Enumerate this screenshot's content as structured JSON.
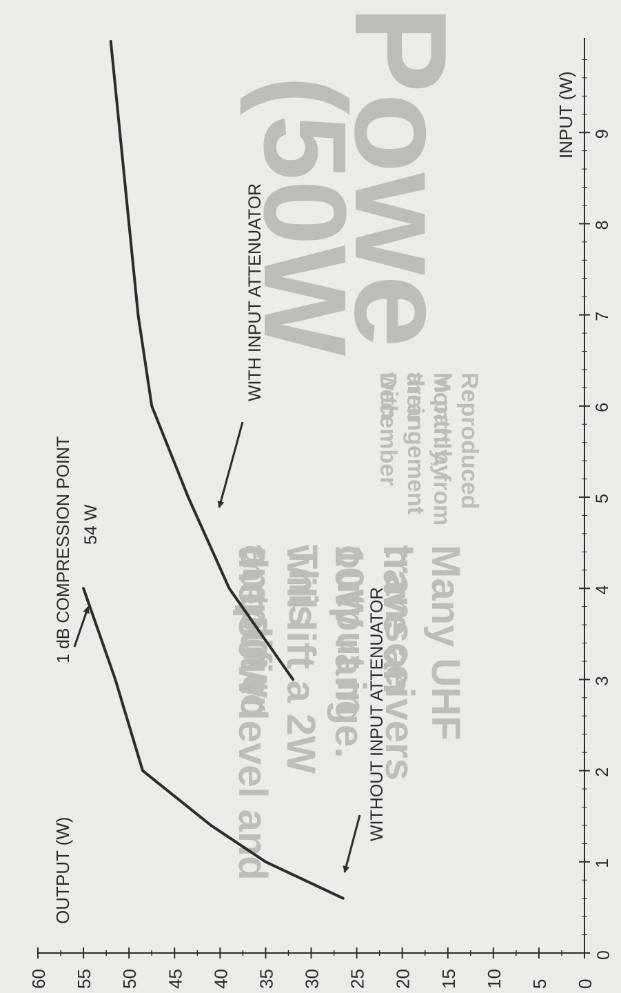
{
  "chart_data": {
    "type": "line",
    "orientation": "rotated-90-clockwise",
    "xlabel": "INPUT (W)",
    "ylabel": "OUTPUT (W)",
    "xlim": [
      0,
      10
    ],
    "ylim": [
      0,
      60
    ],
    "x_ticks": [
      "0",
      "1",
      "2",
      "3",
      "4",
      "5",
      "6",
      "7",
      "8",
      "9"
    ],
    "y_ticks": [
      "0",
      "5",
      "10",
      "15",
      "20",
      "25",
      "30",
      "35",
      "40",
      "45",
      "50",
      "55",
      "60"
    ],
    "series": [
      {
        "name": "WITHOUT INPUT ATTENUATOR",
        "x": [
          0.6,
          1.0,
          1.4,
          2.0,
          3.0,
          4.0
        ],
        "y": [
          26.5,
          35,
          41,
          48.5,
          51.5,
          55
        ]
      },
      {
        "name": "WITH INPUT ATTENUATOR",
        "x": [
          3.0,
          4.0,
          5.0,
          6.0,
          7.0,
          8.0,
          9.0,
          10.0
        ],
        "y": [
          32,
          39,
          43.5,
          47.5,
          49,
          50,
          51,
          52
        ]
      }
    ],
    "annotations": {
      "compression_line1": "1 dB COMPRESSION POINT",
      "compression_line2": "54 W",
      "with_label": "WITH INPUT ATTENUATOR",
      "without_label": "WITHOUT INPUT ATTENUATOR"
    },
    "colors": {
      "line": "#2b2b2b",
      "background": "#ecebe8"
    }
  },
  "background_text": {
    "big1": "Powe",
    "big2": "(50W",
    "caption1": "Reproduced in part by arrangement with",
    "caption2": "Monthly, from their December",
    "body1": "Many UHF transceivers",
    "body2": "have an output in",
    "body3": "10W range. This amplifier",
    "body4": "will lift a 2W output to",
    "body5": "the 50W level and"
  }
}
